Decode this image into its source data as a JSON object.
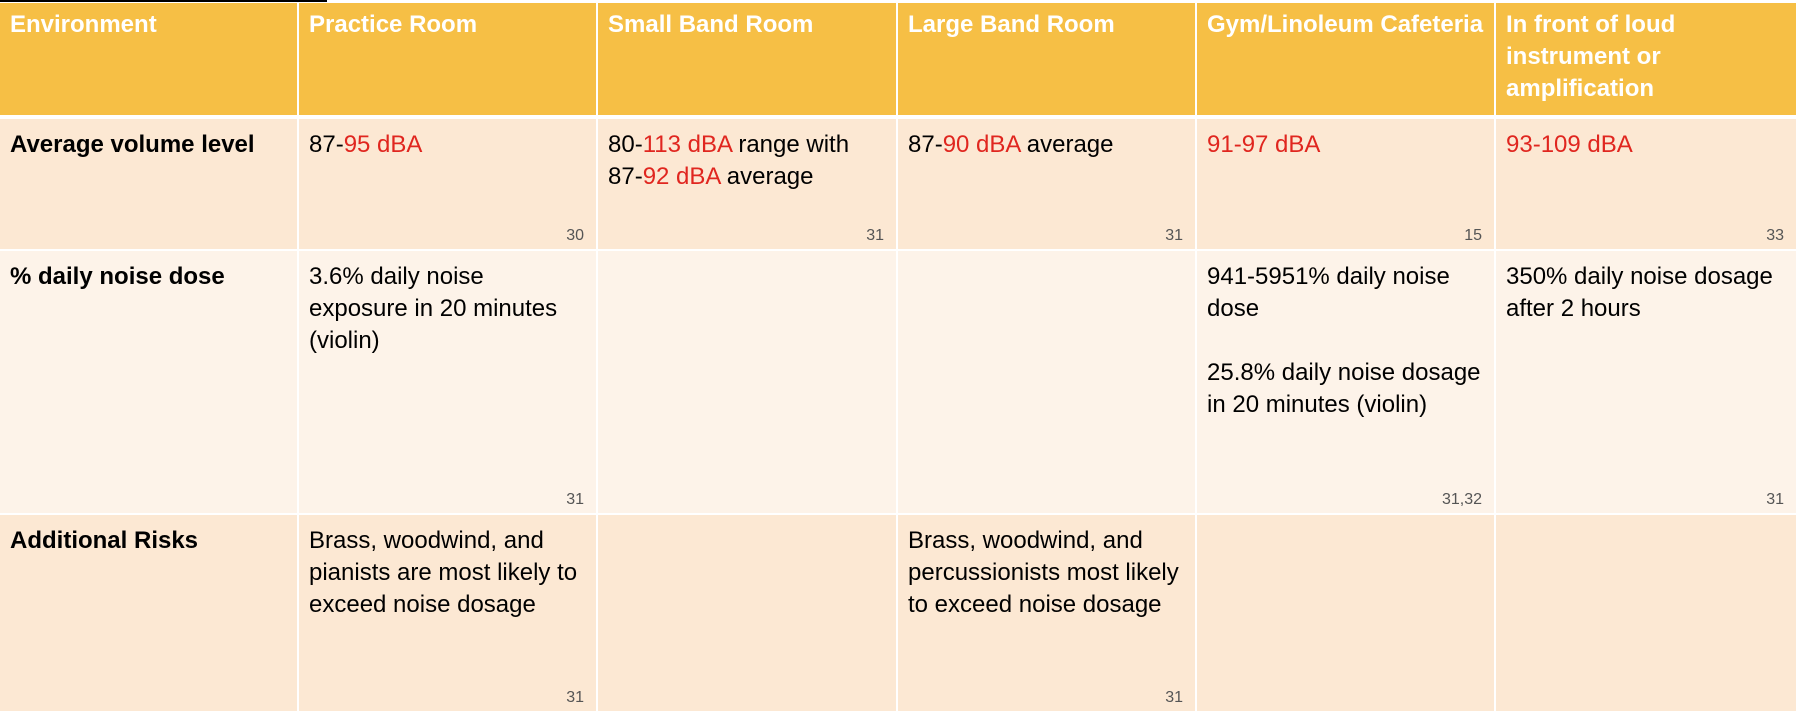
{
  "header": {
    "c0": "Environment",
    "c1": "Practice Room",
    "c2": "Small Band Room",
    "c3": "Large Band Room",
    "c4": "Gym/Linoleum Cafeteria",
    "c5": "In front of loud instrument or amplification"
  },
  "rows": {
    "volume": {
      "label": "Average volume level",
      "practice": {
        "a": "87-",
        "b": "95 dBA",
        "cite": "30"
      },
      "small": {
        "a": "80-",
        "b": "113 dBA",
        "c": " range with ",
        "d": "87-",
        "e": "92 dBA",
        "f": " average",
        "cite": "31"
      },
      "large": {
        "a": "87-",
        "b": "90 dBA",
        "c": " average",
        "cite": "31"
      },
      "gym": {
        "a": "91-97 dBA",
        "cite": "15"
      },
      "front": {
        "a": "93-109 dBA",
        "cite": "33"
      }
    },
    "dose": {
      "label": "% daily noise dose",
      "practice": {
        "text": "3.6% daily noise exposure in 20 minutes (violin)",
        "cite": "31"
      },
      "gym": {
        "text1": "941-5951% daily noise dose",
        "text2": "25.8% daily noise dosage in 20 minutes (violin)",
        "cite": "31,32"
      },
      "front": {
        "text": "350% daily noise dosage after 2 hours",
        "cite": "31"
      }
    },
    "risks": {
      "label": "Additional Risks",
      "practice": {
        "text": "Brass, woodwind, and pianists are most likely to exceed noise dosage",
        "cite": "31"
      },
      "large": {
        "text": "Brass, woodwind, and percussionists most likely to exceed noise dosage",
        "cite": "31"
      }
    }
  },
  "colors": {
    "header_bg": "#f6bf45",
    "row_light": "#fdf3e9",
    "row_tinted": "#fce8d3",
    "highlight_red": "#e0261f"
  }
}
